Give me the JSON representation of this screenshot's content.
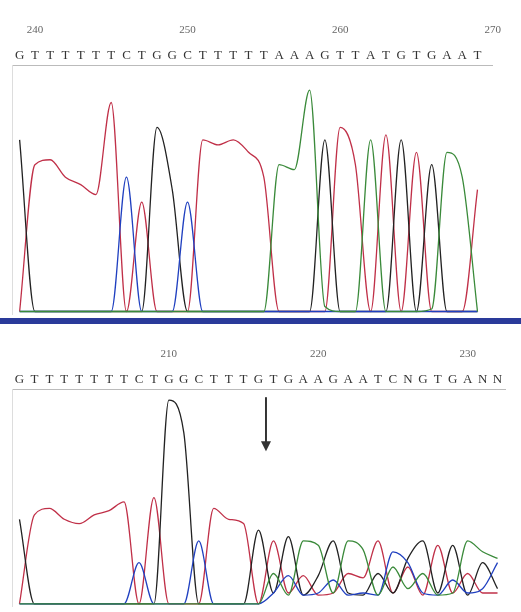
{
  "chart_data": [
    {
      "type": "line",
      "sequence": "GTTTTTTCTGGCTTTTTAAAGTTATGTGAAT",
      "x": [
        239,
        240,
        241,
        242,
        243,
        244,
        245,
        246,
        247,
        248,
        249,
        250,
        251,
        252,
        253,
        254,
        255,
        256,
        257,
        258,
        259,
        260,
        261,
        262,
        263,
        264,
        265,
        266,
        267,
        268,
        269
      ],
      "xlim": [
        238.5,
        270
      ],
      "xticks": [
        240,
        250,
        260,
        270
      ],
      "ylim": [
        0,
        100
      ],
      "tick_labels": "x",
      "grid": false,
      "series": [
        {
          "name": "A",
          "color": "#3a8a3a",
          "values": [
            1,
            1,
            1,
            1,
            1,
            1,
            1,
            1,
            1,
            1,
            1,
            1,
            1,
            1,
            1,
            1,
            1,
            60,
            58,
            90,
            3,
            1,
            1,
            70,
            1,
            1,
            1,
            2,
            65,
            55,
            1
          ]
        },
        {
          "name": "C",
          "color": "#2040c0",
          "values": [
            1,
            1,
            1,
            1,
            1,
            1,
            1,
            55,
            1,
            1,
            1,
            45,
            1,
            1,
            1,
            1,
            1,
            1,
            1,
            1,
            1,
            1,
            1,
            1,
            1,
            1,
            1,
            1,
            1,
            1,
            1
          ]
        },
        {
          "name": "G",
          "color": "#222222",
          "values": [
            70,
            1,
            1,
            1,
            1,
            1,
            1,
            1,
            1,
            75,
            50,
            1,
            1,
            1,
            1,
            1,
            1,
            1,
            1,
            1,
            70,
            1,
            1,
            1,
            1,
            70,
            1,
            60,
            1,
            1,
            1
          ]
        },
        {
          "name": "T",
          "color": "#c03048",
          "values": [
            1,
            60,
            62,
            55,
            52,
            48,
            85,
            1,
            45,
            1,
            1,
            1,
            70,
            68,
            70,
            65,
            55,
            1,
            1,
            1,
            1,
            75,
            60,
            1,
            72,
            1,
            65,
            1,
            1,
            1,
            50
          ]
        }
      ]
    },
    {
      "type": "line",
      "sequence": "GTTTTTTTCTGGCTTTGTGAAGAATCNGTGANN",
      "x": [
        200,
        201,
        202,
        203,
        204,
        205,
        206,
        207,
        208,
        209,
        210,
        211,
        212,
        213,
        214,
        215,
        216,
        217,
        218,
        219,
        220,
        221,
        222,
        223,
        224,
        225,
        226,
        227,
        228,
        229,
        230,
        231,
        232
      ],
      "xlim": [
        199.5,
        232.5
      ],
      "xticks": [
        210,
        220,
        230
      ],
      "ylim": [
        0,
        100
      ],
      "tick_labels": "x",
      "grid": false,
      "arrow_at": 216.5,
      "series": [
        {
          "name": "A",
          "color": "#3a8a3a",
          "values": [
            1,
            1,
            1,
            1,
            1,
            1,
            1,
            1,
            1,
            1,
            1,
            1,
            1,
            1,
            1,
            1,
            1,
            15,
            5,
            30,
            28,
            6,
            30,
            26,
            5,
            18,
            8,
            15,
            5,
            6,
            30,
            25,
            22
          ]
        },
        {
          "name": "C",
          "color": "#2040c0",
          "values": [
            1,
            1,
            1,
            1,
            1,
            1,
            1,
            1,
            20,
            1,
            1,
            1,
            30,
            1,
            1,
            1,
            1,
            6,
            14,
            5,
            6,
            12,
            5,
            6,
            5,
            25,
            20,
            6,
            5,
            12,
            6,
            8,
            20
          ]
        },
        {
          "name": "G",
          "color": "#222222",
          "values": [
            40,
            1,
            1,
            1,
            1,
            1,
            1,
            1,
            1,
            1,
            95,
            80,
            1,
            1,
            1,
            1,
            35,
            6,
            32,
            5,
            14,
            30,
            6,
            5,
            15,
            6,
            22,
            30,
            6,
            28,
            5,
            20,
            8
          ]
        },
        {
          "name": "T",
          "color": "#c03048",
          "values": [
            1,
            42,
            45,
            40,
            38,
            42,
            44,
            48,
            1,
            50,
            1,
            1,
            1,
            45,
            40,
            38,
            1,
            30,
            6,
            14,
            5,
            6,
            15,
            13,
            30,
            6,
            18,
            5,
            28,
            6,
            15,
            6,
            6
          ]
        }
      ]
    }
  ]
}
